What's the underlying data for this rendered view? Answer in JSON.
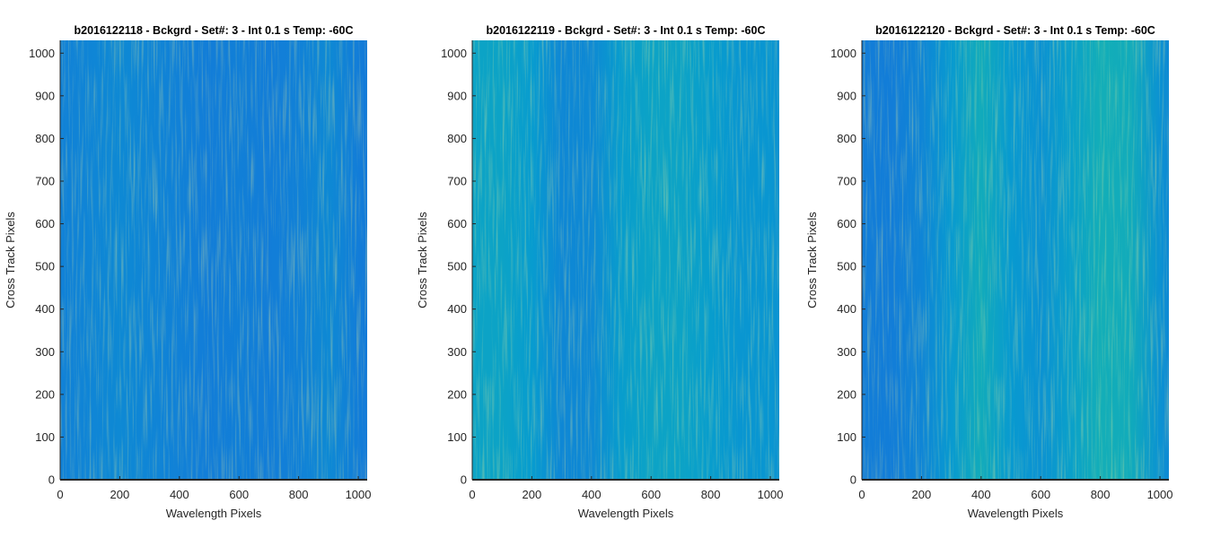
{
  "figure": {
    "background": "#ffffff",
    "axis_color": "#262626"
  },
  "chart_data": [
    {
      "type": "heatmap",
      "title": "b2016122118 - Bckgrd - Set#: 3 - Int 0.1 s Temp: -60C",
      "xlabel": "Wavelength Pixels",
      "ylabel": "Cross Track Pixels",
      "xlim": [
        0,
        1030
      ],
      "ylim": [
        0,
        1030
      ],
      "xticks": [
        0,
        200,
        400,
        600,
        800,
        1000
      ],
      "yticks": [
        0,
        100,
        200,
        300,
        400,
        500,
        600,
        700,
        800,
        900,
        1000
      ],
      "colormap": "parula",
      "column_profile": {
        "wavelength_pixels": [
          0,
          100,
          200,
          300,
          400,
          500,
          600,
          700,
          800,
          900,
          1000,
          1030
        ],
        "relative_level": [
          0.32,
          0.34,
          0.36,
          0.34,
          0.32,
          0.3,
          0.31,
          0.3,
          0.32,
          0.36,
          0.3,
          0.28
        ]
      }
    },
    {
      "type": "heatmap",
      "title": "b2016122119 - Bckgrd - Set#: 3 - Int 0.1 s Temp: -60C",
      "xlabel": "Wavelength Pixels",
      "ylabel": "Cross Track Pixels",
      "xlim": [
        0,
        1030
      ],
      "ylim": [
        0,
        1030
      ],
      "xticks": [
        0,
        200,
        400,
        600,
        800,
        1000
      ],
      "yticks": [
        0,
        100,
        200,
        300,
        400,
        500,
        600,
        700,
        800,
        900,
        1000
      ],
      "colormap": "parula",
      "column_profile": {
        "wavelength_pixels": [
          0,
          100,
          200,
          300,
          400,
          500,
          600,
          700,
          800,
          900,
          1000,
          1030
        ],
        "relative_level": [
          0.5,
          0.5,
          0.45,
          0.35,
          0.36,
          0.46,
          0.5,
          0.5,
          0.46,
          0.42,
          0.42,
          0.4
        ]
      }
    },
    {
      "type": "heatmap",
      "title": "b2016122120 - Bckgrd - Set#: 3 - Int 0.1 s Temp: -60C",
      "xlabel": "Wavelength Pixels",
      "ylabel": "Cross Track Pixels",
      "xlim": [
        0,
        1030
      ],
      "ylim": [
        0,
        1030
      ],
      "xticks": [
        0,
        200,
        400,
        600,
        800,
        1000
      ],
      "yticks": [
        0,
        100,
        200,
        300,
        400,
        500,
        600,
        700,
        800,
        900,
        1000
      ],
      "colormap": "parula",
      "column_profile": {
        "wavelength_pixels": [
          0,
          100,
          200,
          300,
          400,
          500,
          600,
          700,
          800,
          900,
          1000,
          1030
        ],
        "relative_level": [
          0.3,
          0.3,
          0.34,
          0.44,
          0.56,
          0.44,
          0.4,
          0.48,
          0.58,
          0.56,
          0.4,
          0.36
        ]
      }
    }
  ]
}
